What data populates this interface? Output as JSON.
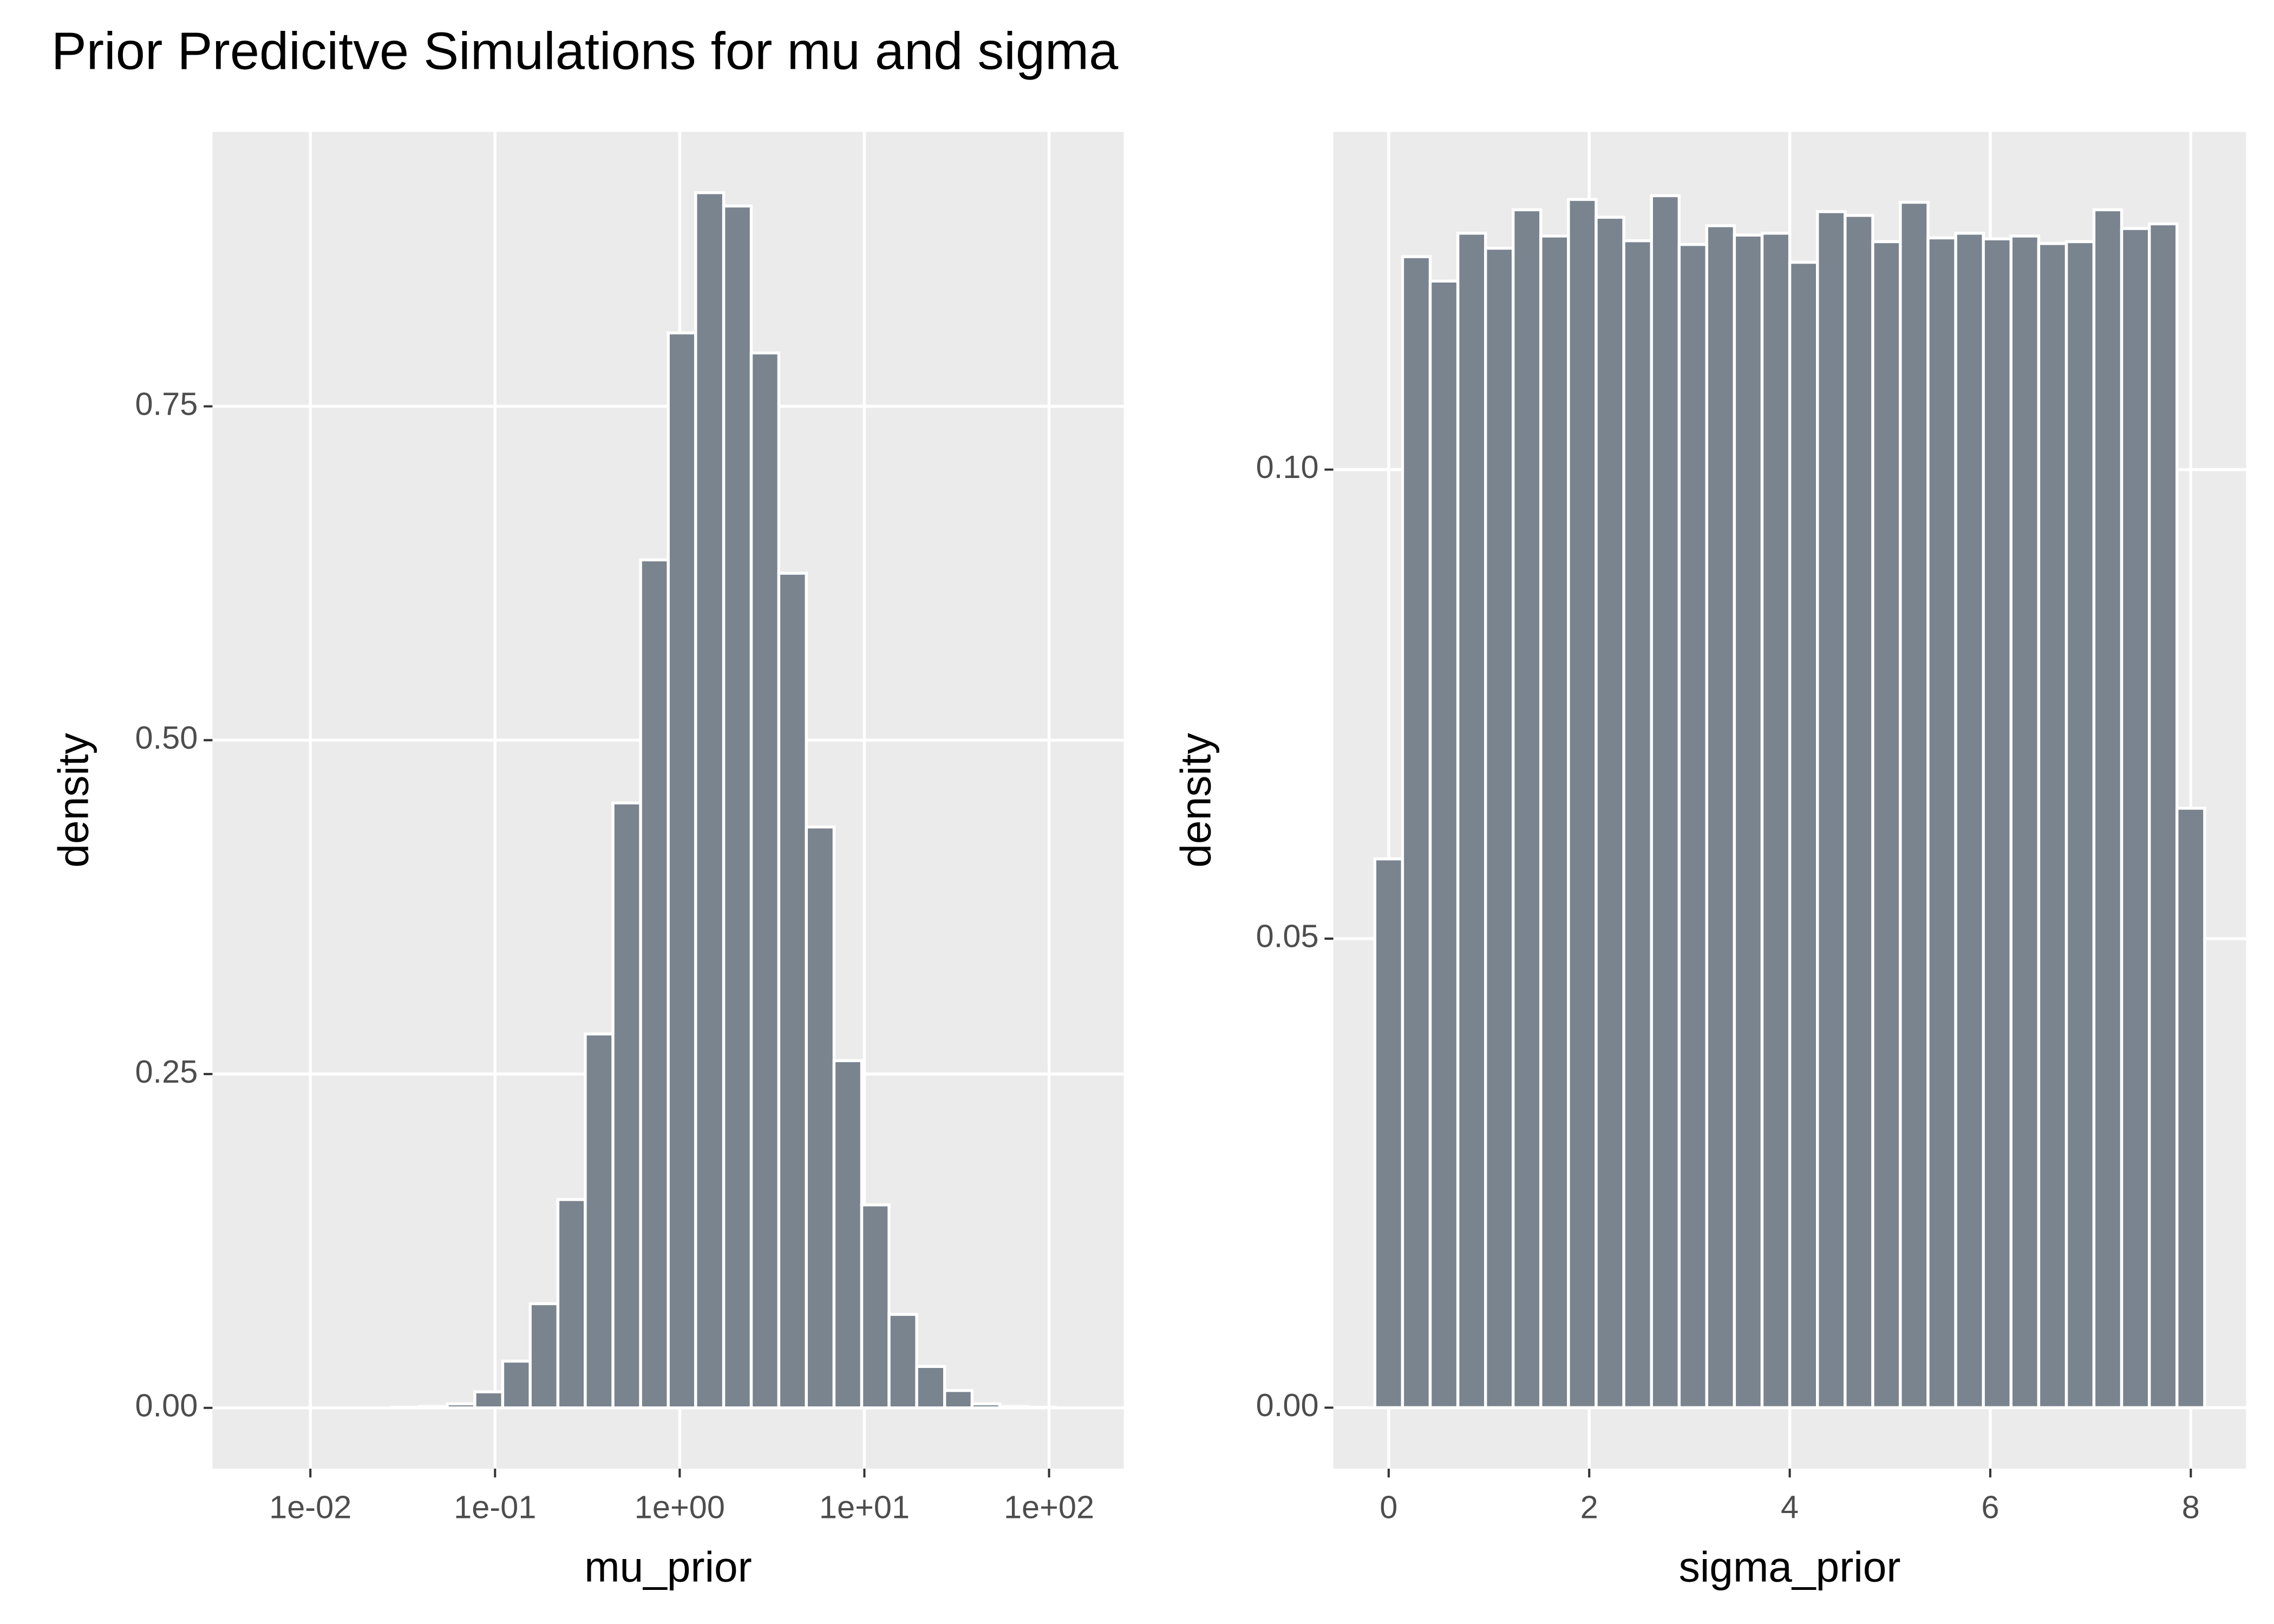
{
  "title": "Prior Predicitve Simulations for mu and sigma",
  "chart_data": [
    {
      "type": "histogram",
      "x_label": "mu_prior",
      "y_label": "density",
      "log_x": true,
      "grid": true,
      "color": "#7a848f",
      "edge_color": "#ffffff",
      "bins": [
        0.00494,
        0.00698,
        0.00984,
        0.0139,
        0.0196,
        0.0277,
        0.039,
        0.0551,
        0.0777,
        0.11,
        0.155,
        0.219,
        0.308,
        0.435,
        0.614,
        0.867,
        1.22,
        1.73,
        2.44,
        3.44,
        4.85,
        6.85,
        9.67,
        13.6,
        19.2,
        27.2,
        38.3,
        54.1,
        76.4,
        108,
        152
      ],
      "values": [
        0,
        0,
        0,
        0,
        0,
        0.0005,
        0.001,
        0.003,
        0.012,
        0.035,
        0.078,
        0.156,
        0.28,
        0.453,
        0.635,
        0.805,
        0.91,
        0.9,
        0.79,
        0.625,
        0.435,
        0.26,
        0.152,
        0.07,
        0.031,
        0.013,
        0.003,
        0.001,
        0.0005,
        0
      ],
      "xlim": [
        0.00295,
        254
      ],
      "xticks": [
        {
          "value": 0.01,
          "label": "1e-02"
        },
        {
          "value": 0.1,
          "label": "1e-01"
        },
        {
          "value": 1,
          "label": "1e+00"
        },
        {
          "value": 10,
          "label": "1e+01"
        },
        {
          "value": 100,
          "label": "1e+02"
        }
      ],
      "ylim": [
        -0.0455,
        0.9555
      ],
      "yticks": [
        {
          "value": 0,
          "label": "0.00"
        },
        {
          "value": 0.25,
          "label": "0.25"
        },
        {
          "value": 0.5,
          "label": "0.50"
        },
        {
          "value": 0.75,
          "label": "0.75"
        }
      ]
    },
    {
      "type": "histogram",
      "x_label": "sigma_prior",
      "y_label": "density",
      "log_x": false,
      "grid": true,
      "color": "#7a848f",
      "edge_color": "#ffffff",
      "bins": [
        -0.138,
        0.138,
        0.414,
        0.69,
        0.966,
        1.241,
        1.517,
        1.793,
        2.069,
        2.345,
        2.621,
        2.897,
        3.172,
        3.448,
        3.724,
        4.0,
        4.276,
        4.552,
        4.828,
        5.103,
        5.379,
        5.655,
        5.931,
        6.207,
        6.483,
        6.759,
        7.034,
        7.31,
        7.586,
        7.862,
        8.138
      ],
      "values": [
        0.0585,
        0.1227,
        0.1201,
        0.1252,
        0.1236,
        0.1277,
        0.1249,
        0.1288,
        0.1269,
        0.1244,
        0.1292,
        0.124,
        0.126,
        0.125,
        0.1252,
        0.1221,
        0.1275,
        0.1271,
        0.1243,
        0.1285,
        0.1247,
        0.1252,
        0.1246,
        0.1249,
        0.1241,
        0.1243,
        0.1277,
        0.1257,
        0.1262,
        0.0639
      ],
      "xlim": [
        -0.552,
        8.552
      ],
      "xticks": [
        0,
        2,
        4,
        6,
        8
      ],
      "ylim": [
        -0.0065,
        0.136
      ],
      "yticks": [
        {
          "value": 0,
          "label": "0.00"
        },
        {
          "value": 0.05,
          "label": "0.05"
        },
        {
          "value": 0.1,
          "label": "0.10"
        }
      ]
    }
  ]
}
